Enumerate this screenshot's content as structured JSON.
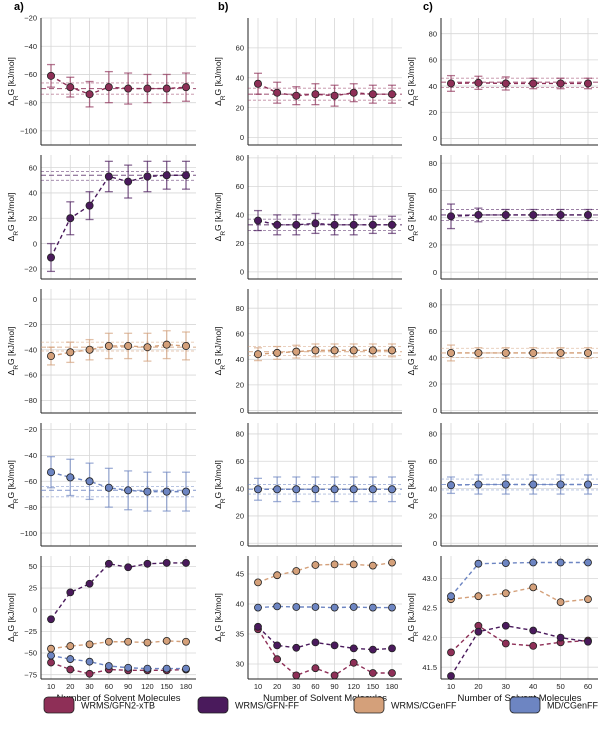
{
  "chart_data": {
    "type": "line-errorbar-grid",
    "panel_labels": [
      "a)",
      "b)",
      "c)"
    ],
    "ylabel": "ΔRG [kJ/mol]",
    "xlabel": "Number of Solvent Molecules",
    "colors": {
      "gfn2": "#8e2f57",
      "gfnff": "#4a1a5c",
      "cgenff": "#d4a07a",
      "md": "#6d85c2"
    },
    "legend": [
      {
        "key": "gfn2",
        "label": "WRMS/GFN2-xTB"
      },
      {
        "key": "gfnff",
        "label": "WRMS/GFN-FF"
      },
      {
        "key": "cgenff",
        "label": "WRMS/CGenFF"
      },
      {
        "key": "md",
        "label": "MD/CGenFF"
      }
    ],
    "columns": [
      {
        "x": [
          10,
          20,
          30,
          60,
          90,
          120,
          150,
          180
        ],
        "xticks": [
          "10",
          "20",
          "30",
          "60",
          "90",
          "120",
          "150",
          "180"
        ],
        "panels": [
          {
            "series": "gfn2",
            "ylim": [
              -110,
              -20
            ],
            "yticks": [
              -20,
              -40,
              -60,
              -80,
              -100
            ],
            "y": [
              -61,
              -69,
              -74,
              -69,
              -70,
              -70,
              -70,
              -69
            ],
            "err": [
              8,
              7,
              9,
              11,
              11,
              10,
              10,
              10
            ],
            "ref": [
              -66,
              -70,
              -74
            ]
          },
          {
            "series": "gfnff",
            "ylim": [
              -28,
              70
            ],
            "yticks": [
              60,
              40,
              20,
              0,
              -20
            ],
            "y": [
              -11,
              20,
              30,
              53,
              49,
              53,
              54,
              54
            ],
            "err": [
              11,
              13,
              11,
              12,
              13,
              12,
              11,
              11
            ],
            "ref": [
              57,
              54,
              50
            ]
          },
          {
            "series": "cgenff",
            "ylim": [
              -90,
              8
            ],
            "yticks": [
              0,
              -20,
              -40,
              -60,
              -80
            ],
            "y": [
              -45,
              -42,
              -40,
              -37,
              -37,
              -38,
              -36,
              -37
            ],
            "err": [
              7,
              8,
              8,
              10,
              10,
              11,
              11,
              11
            ],
            "ref": [
              -34,
              -38,
              -41
            ]
          },
          {
            "series": "md",
            "ylim": [
              -110,
              -15
            ],
            "yticks": [
              -20,
              -40,
              -60,
              -80,
              -100
            ],
            "y": [
              -53,
              -57,
              -60,
              -65,
              -67,
              -68,
              -68,
              -68
            ],
            "err": [
              12,
              14,
              14,
              15,
              15,
              15,
              15,
              15
            ],
            "ref": [
              -64,
              -67,
              -72
            ]
          },
          {
            "series": "all",
            "ylim": [
              -80,
              62
            ],
            "yticks": [
              50,
              25,
              0,
              -25,
              -50,
              -75
            ],
            "all": {
              "gfn2": [
                -61,
                -69,
                -74,
                -69,
                -70,
                -70,
                -70,
                -69
              ],
              "gfnff": [
                -11,
                20,
                30,
                53,
                49,
                53,
                54,
                54
              ],
              "cgenff": [
                -45,
                -42,
                -40,
                -37,
                -37,
                -38,
                -36,
                -37
              ],
              "md": [
                -53,
                -57,
                -60,
                -65,
                -67,
                -68,
                -68,
                -68
              ]
            }
          }
        ]
      },
      {
        "x": [
          10,
          20,
          30,
          60,
          90,
          120,
          150,
          180
        ],
        "xticks": [
          "10",
          "20",
          "30",
          "60",
          "90",
          "120",
          "150",
          "180"
        ],
        "panels": [
          {
            "series": "gfn2",
            "ylim": [
              -5,
              80
            ],
            "yticks": [
              0,
              20,
              40,
              60
            ],
            "y": [
              36,
              30,
              28,
              29,
              28,
              30,
              29,
              29
            ],
            "err": [
              7,
              7,
              6,
              7,
              7,
              6,
              6,
              6
            ],
            "ref": [
              33,
              29,
              25
            ]
          },
          {
            "series": "gfnff",
            "ylim": [
              -5,
              82
            ],
            "yticks": [
              0,
              20,
              40,
              60,
              80
            ],
            "y": [
              36,
              33,
              33,
              34,
              33,
              33,
              33,
              33
            ],
            "err": [
              7,
              7,
              7,
              7,
              7,
              7,
              6,
              6
            ],
            "ref": [
              37,
              33,
              29
            ]
          },
          {
            "series": "cgenff",
            "ylim": [
              -2,
              95
            ],
            "yticks": [
              0,
              20,
              40,
              60,
              80
            ],
            "y": [
              44,
              45,
              46,
              47,
              47,
              47,
              47,
              47
            ],
            "err": [
              5,
              5,
              5,
              5,
              5,
              5,
              5,
              5
            ],
            "ref": [
              50,
              46,
              43
            ]
          },
          {
            "series": "md",
            "ylim": [
              -2,
              88
            ],
            "yticks": [
              0,
              20,
              40,
              60,
              80
            ],
            "y": [
              39.5,
              39.5,
              39.5,
              39.5,
              39.5,
              39.5,
              39.5,
              39.5
            ],
            "err": [
              8,
              9,
              9,
              9,
              9,
              9,
              9,
              9
            ],
            "ref": [
              43,
              39.5,
              36
            ]
          },
          {
            "series": "all",
            "ylim": [
              27.5,
              48
            ],
            "yticks": [
              45,
              40,
              35,
              30
            ],
            "all": {
              "gfn2": [
                35.8,
                30.8,
                28.1,
                29.3,
                28.1,
                30.2,
                28.5,
                28.5
              ],
              "gfnff": [
                36.2,
                33.1,
                32.7,
                33.6,
                33.1,
                32.6,
                32.4,
                32.6
              ],
              "cgenff": [
                43.6,
                44.8,
                45.5,
                46.5,
                46.6,
                46.6,
                46.4,
                46.9
              ],
              "md": [
                39.4,
                39.6,
                39.5,
                39.5,
                39.4,
                39.5,
                39.4,
                39.4
              ]
            }
          }
        ]
      },
      {
        "x": [
          10,
          20,
          30,
          40,
          50,
          60
        ],
        "xticks": [
          "10",
          "20",
          "30",
          "40",
          "50",
          "60"
        ],
        "panels": [
          {
            "series": "gfn2",
            "ylim": [
              -5,
              92
            ],
            "yticks": [
              0,
              20,
              40,
              60,
              80
            ],
            "y": [
              42,
              42.5,
              42,
              42,
              42,
              42
            ],
            "err": [
              6,
              5,
              5,
              4,
              4,
              4
            ],
            "ref": [
              46,
              43,
              39
            ]
          },
          {
            "series": "gfnff",
            "ylim": [
              -5,
              86
            ],
            "yticks": [
              0,
              20,
              40,
              60,
              80
            ],
            "y": [
              41,
              42,
              42,
              42,
              42,
              42
            ],
            "err": [
              9,
              5,
              4,
              4,
              4,
              4
            ],
            "ref": [
              46,
              42,
              38
            ]
          },
          {
            "series": "cgenff",
            "ylim": [
              -2,
              92
            ],
            "yticks": [
              0,
              20,
              40,
              60,
              80
            ],
            "y": [
              43.5,
              43.5,
              43.5,
              43.5,
              43.5,
              43.5
            ],
            "err": [
              6,
              4,
              4,
              4,
              4,
              4
            ],
            "ref": [
              47,
              43.5,
              40
            ]
          },
          {
            "series": "md",
            "ylim": [
              -2,
              88
            ],
            "yticks": [
              0,
              20,
              40,
              60,
              80
            ],
            "y": [
              42.5,
              43,
              43,
              43,
              43,
              43
            ],
            "err": [
              6,
              7,
              7,
              7,
              7,
              7
            ],
            "ref": [
              47,
              43,
              39
            ]
          },
          {
            "series": "all",
            "ylim": [
              41.3,
              43.38
            ],
            "yticks": [
              43.0,
              42.5,
              42.0,
              41.5
            ],
            "yfmt": 1,
            "all": {
              "gfn2": [
                41.75,
                42.2,
                41.9,
                41.86,
                41.92,
                41.95
              ],
              "gfnff": [
                41.35,
                42.1,
                42.2,
                42.12,
                42.0,
                41.93
              ],
              "cgenff": [
                42.65,
                42.7,
                42.75,
                42.85,
                42.6,
                42.65
              ],
              "md": [
                42.7,
                43.25,
                43.26,
                43.27,
                43.27,
                43.27
              ]
            }
          }
        ]
      }
    ]
  }
}
